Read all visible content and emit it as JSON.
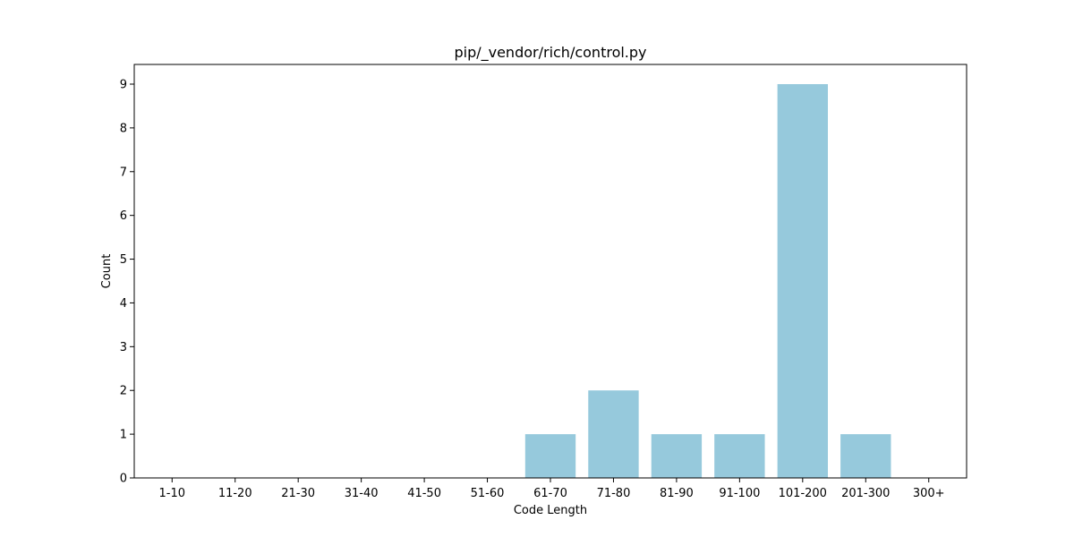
{
  "chart_data": {
    "type": "bar",
    "title": "pip/_vendor/rich/control.py",
    "xlabel": "Code Length",
    "ylabel": "Count",
    "categories": [
      "1-10",
      "11-20",
      "21-30",
      "31-40",
      "41-50",
      "51-60",
      "61-70",
      "71-80",
      "81-90",
      "91-100",
      "101-200",
      "201-300",
      "300+"
    ],
    "values": [
      0,
      0,
      0,
      0,
      0,
      0,
      1,
      2,
      1,
      1,
      9,
      1,
      0
    ],
    "ylim": [
      0,
      9.45
    ],
    "yticks": [
      0,
      1,
      2,
      3,
      4,
      5,
      6,
      7,
      8,
      9
    ],
    "bar_color": "#96c9dc",
    "grid": false,
    "legend": "none"
  }
}
